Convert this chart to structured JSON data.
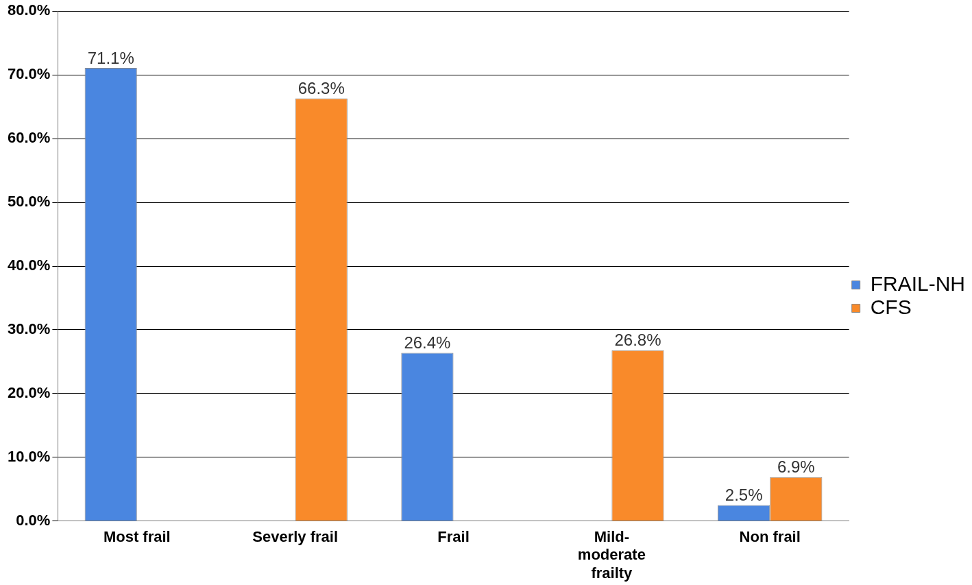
{
  "chart_data": {
    "type": "bar",
    "categories": [
      "Most frail",
      "Severly frail",
      "Frail",
      "Mild-moderate frailty",
      "Non frail"
    ],
    "series": [
      {
        "name": "FRAIL-NH",
        "color": "#4a86e0",
        "values": [
          71.1,
          null,
          26.4,
          null,
          2.5
        ],
        "value_labels": [
          "71.1%",
          null,
          "26.4%",
          null,
          "2.5%"
        ]
      },
      {
        "name": "CFS",
        "color": "#f98a2a",
        "values": [
          null,
          66.3,
          null,
          26.8,
          6.9
        ],
        "value_labels": [
          null,
          "66.3%",
          null,
          "26.8%",
          "6.9%"
        ]
      }
    ],
    "ylim": [
      0,
      80
    ],
    "yticks": [
      {
        "value": 0,
        "label": "0.0%"
      },
      {
        "value": 10,
        "label": "10.0%"
      },
      {
        "value": 20,
        "label": "20.0%"
      },
      {
        "value": 30,
        "label": "30.0%"
      },
      {
        "value": 40,
        "label": "40.0%"
      },
      {
        "value": 50,
        "label": "50.0%"
      },
      {
        "value": 60,
        "label": "60.0%"
      },
      {
        "value": 70,
        "label": "70.0%"
      },
      {
        "value": 80,
        "label": "80.0%"
      }
    ],
    "grid": "y",
    "legend": "right"
  }
}
